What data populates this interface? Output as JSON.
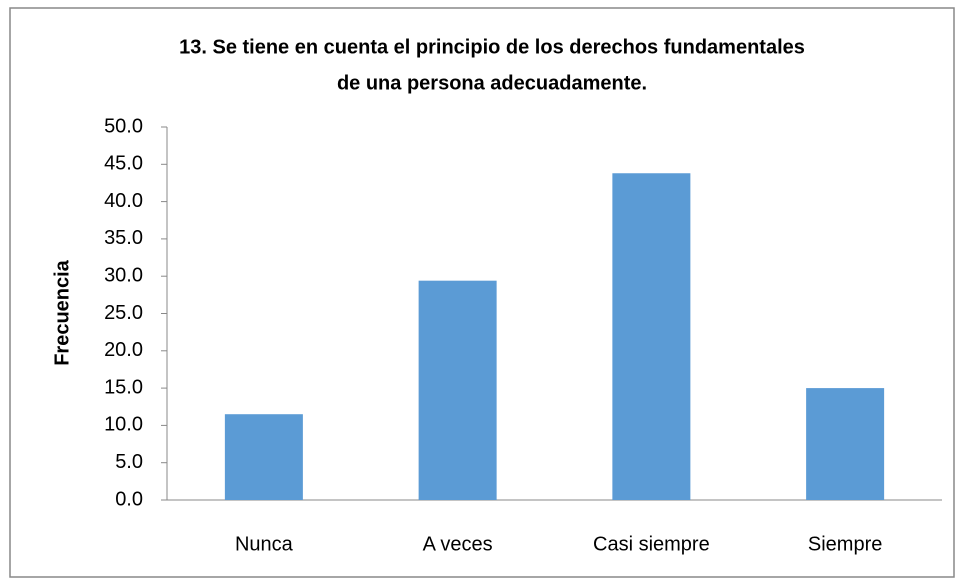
{
  "chart_data": {
    "type": "bar",
    "title": [
      "13. Se tiene en cuenta el principio de los derechos fundamentales",
      "de una persona adecuadamente."
    ],
    "y_label": "Frecuencia",
    "categories": [
      "Nunca",
      "A veces",
      "Casi siempre",
      "Siempre"
    ],
    "values": [
      11.5,
      29.4,
      43.8,
      15.0
    ],
    "color": "#5b9bd5",
    "ylim": [
      0,
      50
    ],
    "yticks": [
      {
        "value": 0,
        "label": "0.0"
      },
      {
        "value": 5,
        "label": "5.0"
      },
      {
        "value": 10,
        "label": "10.0"
      },
      {
        "value": 15,
        "label": "15.0"
      },
      {
        "value": 20,
        "label": "20.0"
      },
      {
        "value": 25,
        "label": "25.0"
      },
      {
        "value": 30,
        "label": "30.0"
      },
      {
        "value": 35,
        "label": "35.0"
      },
      {
        "value": 40,
        "label": "40.0"
      },
      {
        "value": 45,
        "label": "45.0"
      },
      {
        "value": 50,
        "label": "50.0"
      }
    ],
    "grid": false
  }
}
